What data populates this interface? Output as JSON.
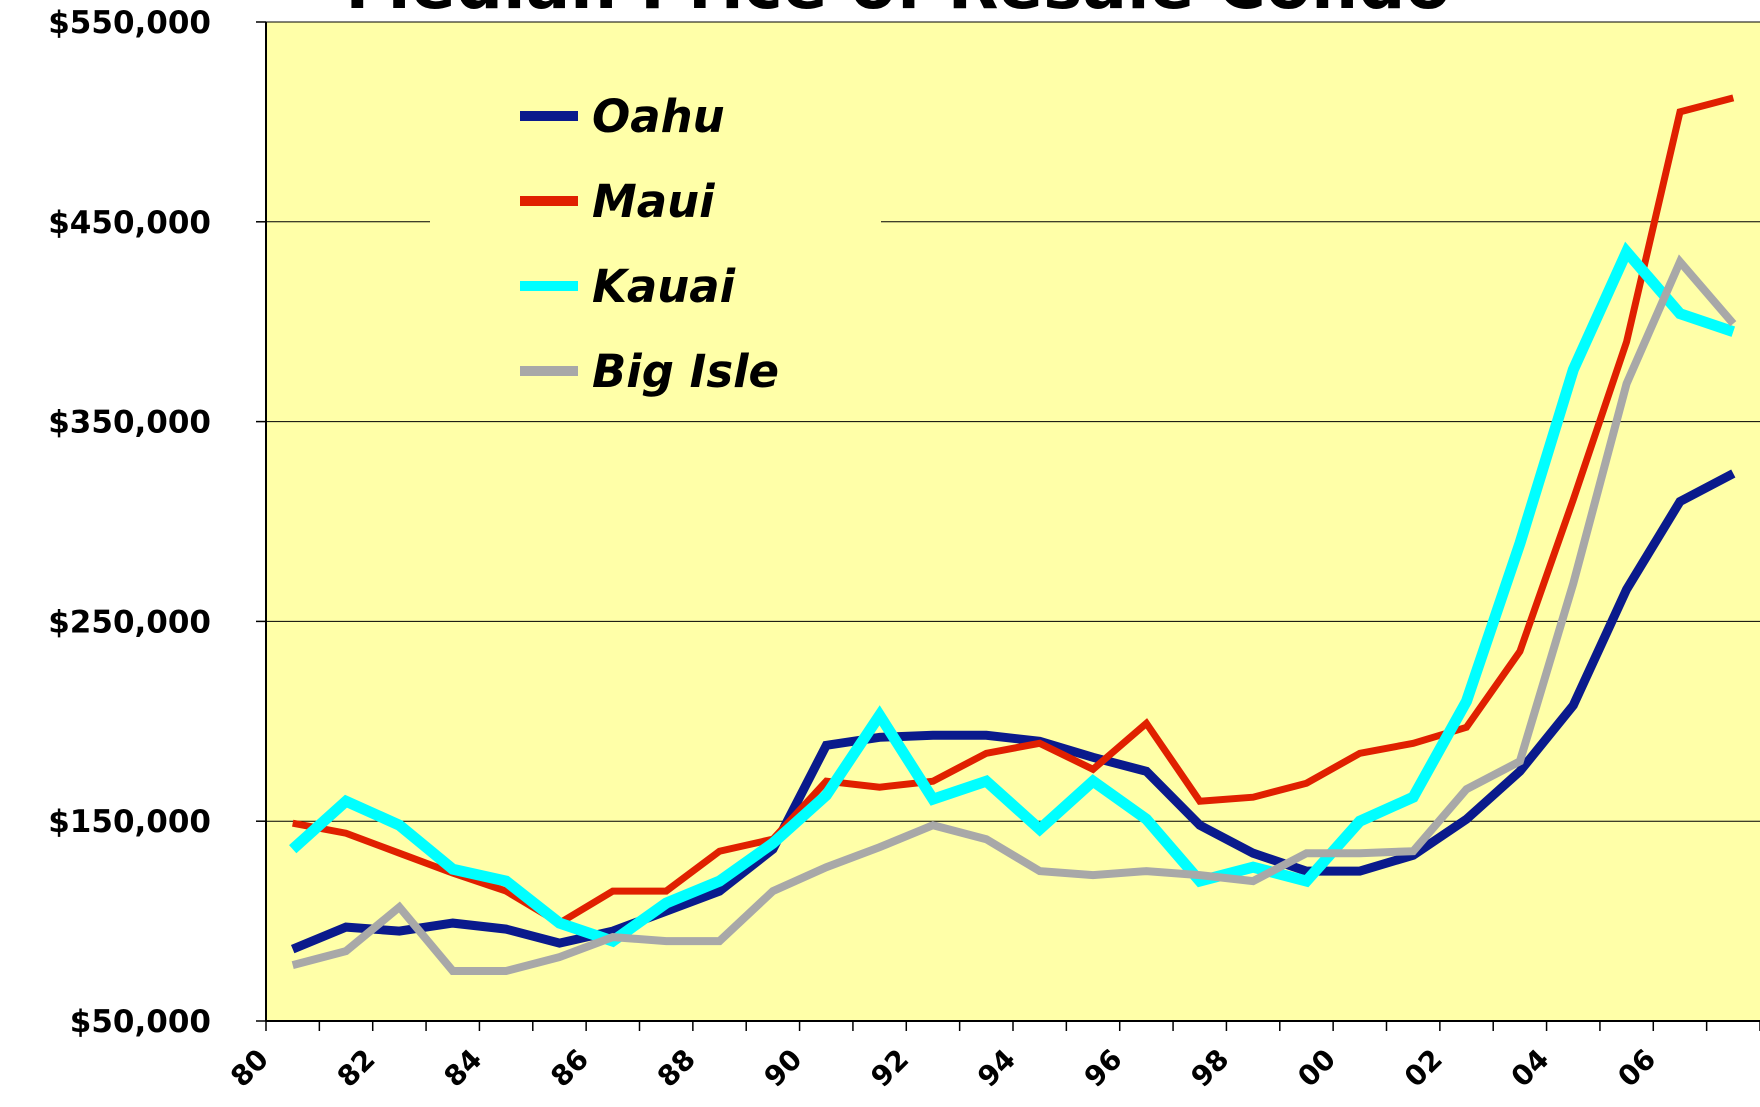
{
  "chart_data": {
    "type": "line",
    "title": "Median Price of Resale Condo",
    "categories": [
      "80",
      null,
      "82",
      null,
      "84",
      null,
      "86",
      null,
      "88",
      null,
      "90",
      null,
      "92",
      null,
      "94",
      null,
      "96",
      null,
      "98",
      null,
      "00",
      null,
      "02",
      null,
      "04",
      null,
      "06",
      null
    ],
    "series": [
      {
        "name": "Oahu",
        "color": "#0a1a8c",
        "values": [
          86000,
          97000,
          95000,
          99000,
          96000,
          89000,
          95000,
          105000,
          115000,
          136000,
          188000,
          192000,
          193000,
          193000,
          190000,
          182000,
          175000,
          148000,
          134000,
          125000,
          125000,
          133000,
          151000,
          175000,
          208000,
          266000,
          310000,
          324000
        ]
      },
      {
        "name": "Maui",
        "color": "#e02000",
        "values": [
          149000,
          144000,
          134000,
          124000,
          115000,
          99000,
          115000,
          115000,
          135000,
          141000,
          170000,
          167000,
          170000,
          184000,
          189000,
          176000,
          199000,
          160000,
          162000,
          169000,
          184000,
          189000,
          197000,
          235000,
          311000,
          390000,
          505000,
          512000
        ]
      },
      {
        "name": "Kauai",
        "color": "#00ffff",
        "values": [
          136000,
          160000,
          148000,
          126000,
          120000,
          99000,
          90000,
          109000,
          120000,
          139000,
          163000,
          203000,
          161000,
          170000,
          146000,
          170000,
          151000,
          120000,
          127000,
          120000,
          150000,
          162000,
          210000,
          289000,
          376000,
          435000,
          404000,
          395000
        ]
      },
      {
        "name": "Big Isle",
        "color": "#a8a8a8",
        "values": [
          78000,
          85000,
          107000,
          75000,
          75000,
          82000,
          92000,
          90000,
          90000,
          115000,
          127000,
          137000,
          148000,
          141000,
          125000,
          123000,
          125000,
          123000,
          120000,
          134000,
          134000,
          135000,
          166000,
          180000,
          269000,
          369000,
          430000,
          399000
        ]
      }
    ],
    "ylim": [
      50000,
      550000
    ],
    "yticks": [
      {
        "value": 50000,
        "label": "$50,000"
      },
      {
        "value": 150000,
        "label": "$150,000"
      },
      {
        "value": 250000,
        "label": "$250,000"
      },
      {
        "value": 350000,
        "label": "$350,000"
      },
      {
        "value": 450000,
        "label": "$450,000"
      },
      {
        "value": 550000,
        "label": "$550,000"
      }
    ],
    "grid": true,
    "legend": "upper left",
    "background": "#ffffa8"
  }
}
